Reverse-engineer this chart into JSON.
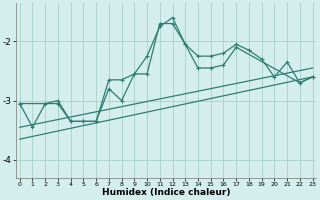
{
  "xlabel": "Humidex (Indice chaleur)",
  "background_color": "#d4eeed",
  "grid_color": "#aed4d0",
  "line_color": "#2e7d72",
  "x_values": [
    0,
    1,
    2,
    3,
    4,
    5,
    6,
    7,
    8,
    9,
    10,
    11,
    12,
    13,
    14,
    15,
    16,
    17,
    18,
    19,
    20,
    21,
    22,
    23
  ],
  "line1": [
    -3.05,
    -3.45,
    -3.05,
    -3.0,
    -3.35,
    -3.35,
    -3.35,
    -2.8,
    -3.0,
    -2.55,
    -2.25,
    -1.75,
    -1.6,
    -2.05,
    -2.25,
    -2.25,
    -2.2,
    -2.05,
    -2.15,
    -2.3,
    -2.6,
    -2.35,
    -2.7,
    -2.6
  ],
  "line2_x": [
    0,
    3,
    4,
    5,
    6,
    7,
    8,
    9,
    10,
    11,
    12,
    13,
    14,
    15,
    16,
    17,
    22,
    23
  ],
  "line2_y": [
    -3.05,
    -3.05,
    -3.35,
    -3.35,
    -3.35,
    -2.65,
    -2.65,
    -2.55,
    -2.55,
    -1.7,
    -1.7,
    -2.05,
    -2.45,
    -2.45,
    -2.4,
    -2.1,
    -2.7,
    -2.6
  ],
  "line3": [
    [
      0,
      -3.65
    ],
    [
      23,
      -2.6
    ]
  ],
  "line4": [
    [
      0,
      -3.45
    ],
    [
      23,
      -2.45
    ]
  ],
  "ylim": [
    -4.3,
    -1.35
  ],
  "xlim": [
    -0.3,
    23.3
  ],
  "yticks": [
    -4,
    -3,
    -2
  ],
  "xticks": [
    0,
    1,
    2,
    3,
    4,
    5,
    6,
    7,
    8,
    9,
    10,
    11,
    12,
    13,
    14,
    15,
    16,
    17,
    18,
    19,
    20,
    21,
    22,
    23
  ]
}
